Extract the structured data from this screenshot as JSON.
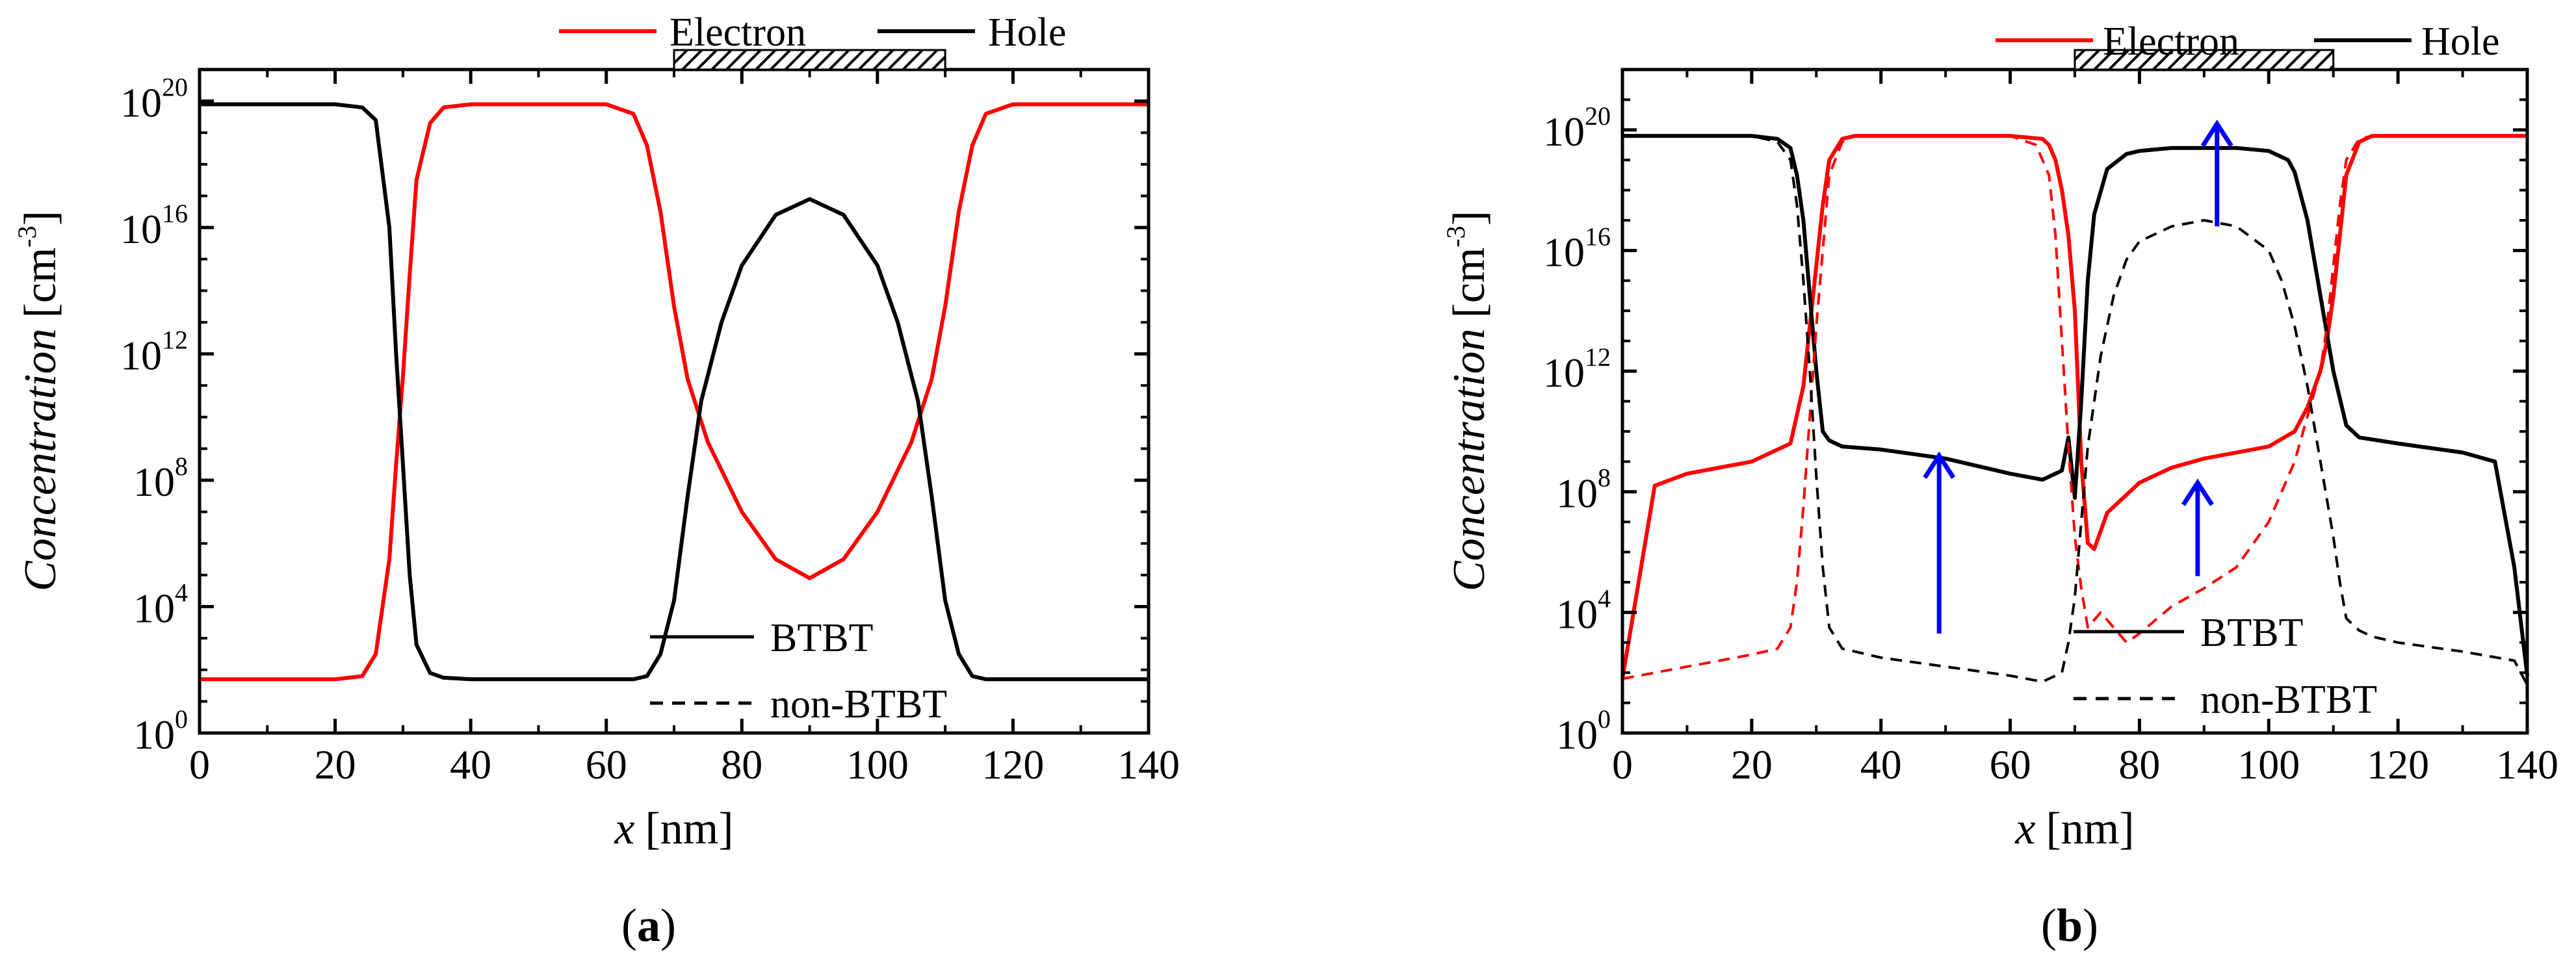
{
  "figure": {
    "colors": {
      "electron": "#ff0000",
      "hole": "#000000",
      "arrow": "#0000ff",
      "axis": "#000000",
      "background": "#ffffff"
    }
  },
  "chart_data": [
    {
      "type": "line",
      "panel_label": "(a)",
      "panel_letter": "a",
      "xlabel_var": "x",
      "xlabel_unit": "[nm]",
      "ylabel_var": "Concentration",
      "ylabel_unit": "[cm",
      "ylabel_exp": "-3",
      "ylabel_close": "]",
      "y_scale": "log",
      "xlim": [
        0,
        140
      ],
      "ylim_log10": [
        0,
        21
      ],
      "x_ticks": [
        "0",
        "20",
        "40",
        "60",
        "80",
        "100",
        "120",
        "140"
      ],
      "y_ticks": [
        {
          "base": "10",
          "exp": "0"
        },
        {
          "base": "10",
          "exp": "4"
        },
        {
          "base": "10",
          "exp": "8"
        },
        {
          "base": "10",
          "exp": "12"
        },
        {
          "base": "10",
          "exp": "16"
        },
        {
          "base": "10",
          "exp": "20"
        }
      ],
      "gate_region_nm": [
        70,
        110
      ],
      "legend_top": [
        {
          "label": "Electron",
          "color": "#ff0000"
        },
        {
          "label": "Hole",
          "color": "#000000"
        }
      ],
      "legend_bottom": [
        {
          "label": "BTBT",
          "style": "solid"
        },
        {
          "label": "non-BTBT",
          "style": "dashed"
        }
      ],
      "series": [
        {
          "name": "Electron BTBT",
          "color": "#ff0000",
          "style": "solid",
          "x": [
            0,
            20,
            24,
            26,
            28,
            29,
            30,
            31,
            32,
            34,
            36,
            40,
            60,
            64,
            66,
            68,
            70,
            72,
            75,
            80,
            85,
            90,
            95,
            100,
            105,
            108,
            110,
            112,
            114,
            116,
            120,
            140
          ],
          "log10_y": [
            1.7,
            1.7,
            1.8,
            2.5,
            5.5,
            8.5,
            11.3,
            14.5,
            17.5,
            19.3,
            19.8,
            19.9,
            19.9,
            19.6,
            18.6,
            16.5,
            13.5,
            11.2,
            9.2,
            7.0,
            5.5,
            4.9,
            5.5,
            7.0,
            9.2,
            11.2,
            13.5,
            16.5,
            18.6,
            19.6,
            19.9,
            19.9
          ]
        },
        {
          "name": "Hole BTBT",
          "color": "#000000",
          "style": "solid",
          "x": [
            0,
            20,
            24,
            26,
            28,
            29,
            30,
            31,
            32,
            34,
            36,
            40,
            64,
            66,
            68,
            70,
            72,
            74,
            77,
            80,
            85,
            90,
            95,
            100,
            103,
            106,
            108,
            110,
            112,
            114,
            116,
            120,
            140
          ],
          "log10_y": [
            19.9,
            19.9,
            19.8,
            19.4,
            16.0,
            12.0,
            8.5,
            5.0,
            2.8,
            1.9,
            1.75,
            1.7,
            1.7,
            1.8,
            2.5,
            4.2,
            7.5,
            10.5,
            13.0,
            14.8,
            16.4,
            16.9,
            16.4,
            14.8,
            13.0,
            10.5,
            7.5,
            4.2,
            2.5,
            1.8,
            1.7,
            1.7,
            1.7
          ]
        }
      ]
    },
    {
      "type": "line",
      "panel_label": "(b)",
      "panel_letter": "b",
      "xlabel_var": "x",
      "xlabel_unit": "[nm]",
      "ylabel_var": "Concentration",
      "ylabel_unit": "[cm",
      "ylabel_exp": "-3",
      "ylabel_close": "]",
      "y_scale": "log",
      "xlim": [
        0,
        140
      ],
      "ylim_log10": [
        0,
        22
      ],
      "x_ticks": [
        "0",
        "20",
        "40",
        "60",
        "80",
        "100",
        "120",
        "140"
      ],
      "y_ticks": [
        {
          "base": "10",
          "exp": "0"
        },
        {
          "base": "10",
          "exp": "4"
        },
        {
          "base": "10",
          "exp": "8"
        },
        {
          "base": "10",
          "exp": "12"
        },
        {
          "base": "10",
          "exp": "16"
        },
        {
          "base": "10",
          "exp": "20"
        }
      ],
      "gate_region_nm": [
        70,
        110
      ],
      "legend_top": [
        {
          "label": "Electron",
          "color": "#ff0000"
        },
        {
          "label": "Hole",
          "color": "#000000"
        }
      ],
      "legend_bottom": [
        {
          "label": "BTBT",
          "style": "solid"
        },
        {
          "label": "non-BTBT",
          "style": "dashed"
        }
      ],
      "arrows": [
        {
          "x": 49,
          "log10_from": 3.3,
          "log10_to": 9.2
        },
        {
          "x": 89,
          "log10_from": 5.2,
          "log10_to": 8.3
        },
        {
          "x": 92,
          "log10_from": 16.8,
          "log10_to": 20.2
        }
      ],
      "series": [
        {
          "name": "Electron BTBT",
          "color": "#ff0000",
          "style": "solid",
          "x": [
            0,
            5,
            10,
            20,
            26,
            28,
            29,
            30,
            31,
            32,
            34,
            36,
            40,
            60,
            65,
            66,
            67,
            68,
            69,
            70,
            71,
            72,
            73,
            75,
            80,
            85,
            90,
            95,
            100,
            104,
            106,
            108,
            109,
            110,
            111,
            112,
            114,
            116,
            120,
            140
          ],
          "log10_y": [
            1.8,
            8.2,
            8.6,
            9.0,
            9.6,
            11.5,
            13.5,
            15.5,
            17.5,
            19.0,
            19.7,
            19.8,
            19.8,
            19.8,
            19.7,
            19.5,
            19.0,
            18.0,
            16.5,
            14.0,
            9.0,
            6.3,
            6.1,
            7.3,
            8.3,
            8.8,
            9.1,
            9.3,
            9.5,
            10.0,
            10.8,
            12.0,
            13.0,
            14.5,
            16.5,
            18.5,
            19.6,
            19.8,
            19.8,
            19.8
          ]
        },
        {
          "name": "Hole BTBT",
          "color": "#000000",
          "style": "solid",
          "x": [
            0,
            20,
            24,
            26,
            27,
            28,
            29,
            30,
            31,
            32,
            34,
            40,
            50,
            60,
            65,
            68,
            69,
            70,
            71,
            72,
            73,
            75,
            78,
            80,
            85,
            90,
            95,
            100,
            103,
            104,
            106,
            108,
            110,
            112,
            114,
            120,
            130,
            135,
            138,
            140
          ],
          "log10_y": [
            19.8,
            19.8,
            19.7,
            19.4,
            18.5,
            17.0,
            14.5,
            12.0,
            10.0,
            9.7,
            9.5,
            9.4,
            9.1,
            8.6,
            8.4,
            8.7,
            9.8,
            7.8,
            11.0,
            15.0,
            17.2,
            18.7,
            19.2,
            19.3,
            19.4,
            19.4,
            19.4,
            19.3,
            19.0,
            18.6,
            17.0,
            14.5,
            12.0,
            10.2,
            9.8,
            9.6,
            9.3,
            9.0,
            5.5,
            1.9
          ]
        },
        {
          "name": "Electron non-BTBT",
          "color": "#ff0000",
          "style": "dashed",
          "x": [
            0,
            5,
            10,
            15,
            20,
            24,
            26,
            27,
            28,
            29,
            30,
            31,
            32,
            34,
            36,
            40,
            60,
            64,
            66,
            67,
            68,
            69,
            70,
            71,
            72,
            74,
            76,
            78,
            80,
            85,
            90,
            95,
            100,
            104,
            106,
            108,
            109,
            110,
            111,
            112,
            114,
            116,
            120,
            140
          ],
          "log10_y": [
            1.8,
            2.0,
            2.2,
            2.4,
            2.6,
            2.8,
            3.5,
            5.0,
            7.5,
            10.5,
            13.5,
            16.0,
            18.5,
            19.6,
            19.8,
            19.8,
            19.8,
            19.5,
            18.5,
            16.5,
            13.0,
            9.5,
            6.5,
            4.8,
            3.5,
            4.0,
            3.5,
            3.0,
            3.3,
            4.2,
            4.8,
            5.5,
            7.0,
            9.0,
            10.5,
            12.0,
            13.5,
            15.5,
            17.5,
            19.0,
            19.7,
            19.8,
            19.8,
            19.8
          ]
        },
        {
          "name": "Hole non-BTBT",
          "color": "#000000",
          "style": "dashed",
          "x": [
            0,
            20,
            24,
            26,
            27,
            28,
            29,
            30,
            31,
            32,
            34,
            40,
            50,
            60,
            65,
            68,
            69,
            70,
            71,
            72,
            74,
            76,
            78,
            80,
            85,
            90,
            95,
            100,
            102,
            104,
            106,
            108,
            110,
            111,
            112,
            114,
            116,
            120,
            130,
            138,
            140
          ],
          "log10_y": [
            19.8,
            19.8,
            19.6,
            19.0,
            17.5,
            15.0,
            12.0,
            8.5,
            5.5,
            3.5,
            2.8,
            2.5,
            2.2,
            1.9,
            1.7,
            2.0,
            3.0,
            4.5,
            7.0,
            9.5,
            12.5,
            14.5,
            15.7,
            16.3,
            16.8,
            17.0,
            16.8,
            16.0,
            15.0,
            13.5,
            11.5,
            9.0,
            6.5,
            5.0,
            3.8,
            3.4,
            3.2,
            3.0,
            2.7,
            2.4,
            1.6
          ]
        }
      ]
    }
  ]
}
